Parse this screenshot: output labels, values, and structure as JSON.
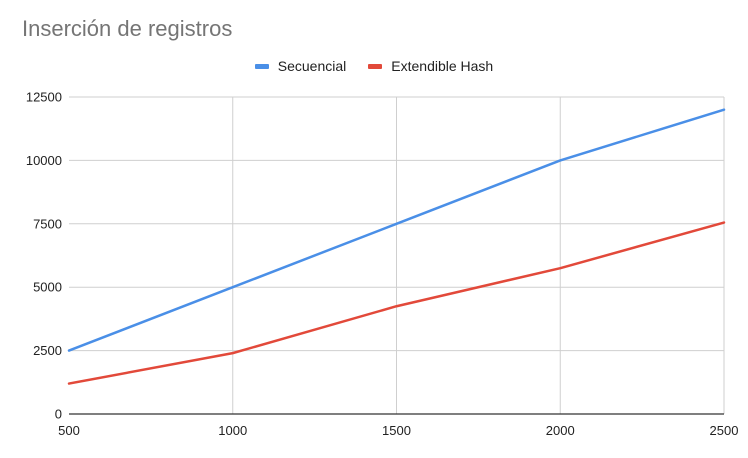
{
  "chart_data": {
    "type": "line",
    "title": "Inserción de registros",
    "xlabel": "",
    "ylabel": "",
    "x": [
      500,
      1000,
      1500,
      2000,
      2500
    ],
    "xlim": [
      500,
      2500
    ],
    "ylim": [
      0,
      12500
    ],
    "x_ticks": [
      "500",
      "1000",
      "1500",
      "2000",
      "2500"
    ],
    "y_ticks": [
      "0",
      "2500",
      "5000",
      "7500",
      "10000",
      "12500"
    ],
    "grid": true,
    "legend_position": "top-center",
    "series": [
      {
        "name": "Secuencial",
        "color": "#4a8fe7",
        "values": [
          2500,
          5000,
          7500,
          10000,
          12000
        ]
      },
      {
        "name": "Extendible Hash",
        "color": "#e2493a",
        "values": [
          1200,
          2400,
          4250,
          5750,
          7550
        ]
      }
    ]
  }
}
